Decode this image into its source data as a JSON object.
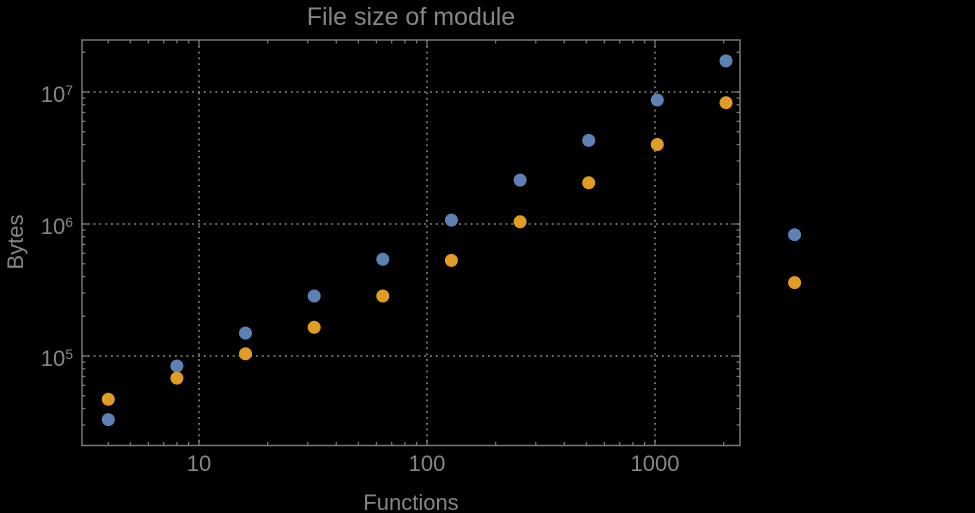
{
  "title": "File size of module",
  "background_color": "#000000",
  "text_color": "#868686",
  "frame_color": "#787878",
  "gridline_color": "#787878",
  "x_axis": {
    "label": "Functions",
    "scale": "log",
    "ticks": [
      {
        "value": 10,
        "label": "10"
      },
      {
        "value": 100,
        "label": "100"
      },
      {
        "value": 1000,
        "label": "1000"
      }
    ]
  },
  "y_axis": {
    "label": "Bytes",
    "scale": "log",
    "ticks": [
      {
        "value": 100000,
        "base": "10",
        "exponent": "5",
        "label": "10^5"
      },
      {
        "value": 1000000,
        "base": "10",
        "exponent": "6",
        "label": "10^6"
      },
      {
        "value": 10000000,
        "base": "10",
        "exponent": "7",
        "label": "10^7"
      }
    ]
  },
  "chart_data": {
    "type": "scatter",
    "title": "File size of module",
    "xlabel": "Functions",
    "ylabel": "Bytes",
    "x_scale": "log",
    "y_scale": "log",
    "xlim": [
      3.07,
      2380
    ],
    "ylim": [
      21000,
      25000000
    ],
    "x_gridlines": [
      10,
      100,
      1000
    ],
    "y_gridlines": [
      100000,
      1000000,
      10000000
    ],
    "grid_style": "dotted",
    "legend": "none",
    "marker_radius_px": 6.5,
    "x": [
      4,
      8,
      16,
      32,
      64,
      128,
      256,
      512,
      1024,
      2048,
      4096
    ],
    "series": [
      {
        "name": "blue",
        "color": "#5e81b5",
        "values": [
          33000,
          84000,
          149000,
          285000,
          540000,
          1070000,
          2150000,
          4300000,
          8700000,
          17200000,
          830000
        ]
      },
      {
        "name": "orange",
        "color": "#e19c24",
        "values": [
          47000,
          68000,
          104000,
          165000,
          285000,
          530000,
          1040000,
          2050000,
          4000000,
          8300000,
          360000
        ]
      }
    ]
  }
}
